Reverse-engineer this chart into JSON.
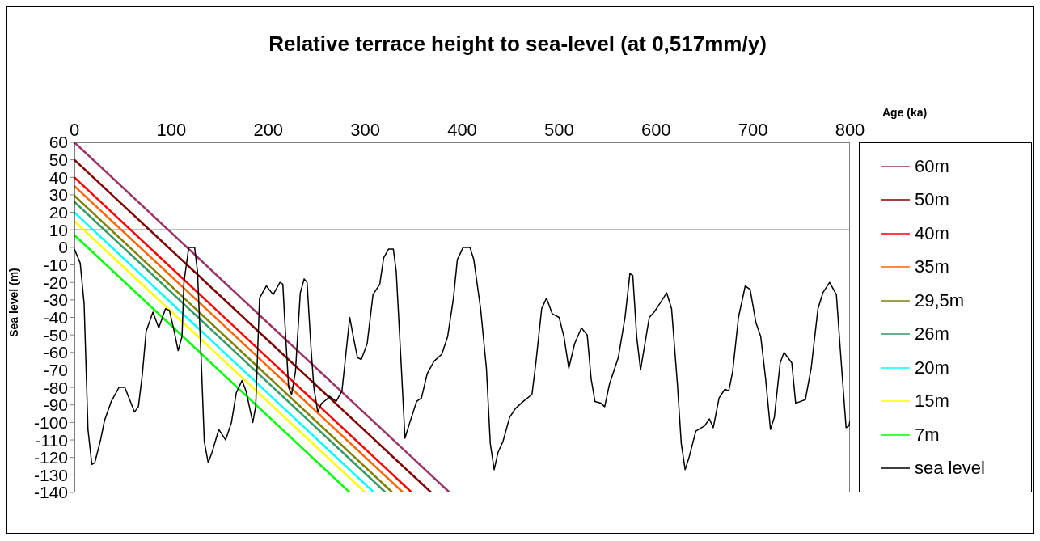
{
  "chart_data": {
    "type": "line",
    "title": "Relative terrace height to sea-level (at 0,517mm/y)",
    "xlabel": "Age (ka)",
    "ylabel": "Sea level (m)",
    "xlim": [
      0,
      800
    ],
    "xticks": [
      0,
      100,
      200,
      300,
      400,
      500,
      600,
      700,
      800
    ],
    "ylim": [
      -140,
      60
    ],
    "yticks": [
      60,
      50,
      40,
      30,
      20,
      10,
      0,
      -10,
      -20,
      -30,
      -40,
      -50,
      -60,
      -70,
      -80,
      -90,
      -100,
      -110,
      -120,
      -130,
      -140
    ],
    "legend": "right",
    "marker": "none",
    "line_style": "solid",
    "ref_lines": [
      {
        "axis": "y",
        "value": 10,
        "color": "#808080"
      }
    ],
    "series": [
      {
        "name": "60m",
        "color": "#993366",
        "x": [
          0,
          387
        ],
        "values": [
          60,
          -140
        ]
      },
      {
        "name": "50m",
        "color": "#800000",
        "x": [
          0,
          368
        ],
        "values": [
          50,
          -140
        ]
      },
      {
        "name": "40m",
        "color": "#ff0000",
        "x": [
          0,
          348
        ],
        "values": [
          40,
          -140
        ]
      },
      {
        "name": "35m",
        "color": "#ff6600",
        "x": [
          0,
          339
        ],
        "values": [
          35,
          -140
        ]
      },
      {
        "name": "29,5m",
        "color": "#808000",
        "x": [
          0,
          328
        ],
        "values": [
          29.5,
          -140
        ]
      },
      {
        "name": "26m",
        "color": "#339966",
        "x": [
          0,
          321
        ],
        "values": [
          26,
          -140
        ]
      },
      {
        "name": "20m",
        "color": "#00ffff",
        "x": [
          0,
          309
        ],
        "values": [
          20,
          -140
        ]
      },
      {
        "name": "15m",
        "color": "#ffff00",
        "x": [
          0,
          300
        ],
        "values": [
          15,
          -140
        ]
      },
      {
        "name": "7m",
        "color": "#00ff00",
        "x": [
          0,
          284
        ],
        "values": [
          7,
          -140
        ]
      },
      {
        "name": "sea level",
        "color": "#000000",
        "x": [
          0,
          6,
          10,
          14,
          18,
          21,
          27,
          31,
          38,
          46,
          52,
          57,
          62,
          66,
          70,
          74,
          81,
          87,
          94,
          98,
          103,
          107,
          111,
          113,
          118,
          124,
          127,
          131,
          134,
          138,
          142,
          149,
          156,
          162,
          167,
          173,
          177,
          184,
          187,
          189,
          191,
          198,
          205,
          212,
          215,
          217,
          221,
          224,
          228,
          233,
          237,
          240,
          244,
          247,
          251,
          255,
          260,
          263,
          270,
          276,
          280,
          284,
          288,
          292,
          296,
          302,
          308,
          315,
          319,
          324,
          329,
          332,
          337,
          341,
          346,
          353,
          358,
          364,
          371,
          379,
          385,
          391,
          395,
          401,
          408,
          412,
          419,
          425,
          429,
          433,
          437,
          442,
          449,
          455,
          463,
          472,
          476,
          482,
          487,
          493,
          500,
          505,
          510,
          516,
          523,
          529,
          533,
          537,
          543,
          547,
          552,
          561,
          568,
          573,
          576,
          580,
          584,
          587,
          593,
          598,
          604,
          611,
          616,
          622,
          626,
          630,
          634,
          641,
          650,
          655,
          659,
          665,
          671,
          675,
          679,
          685,
          692,
          697,
          703,
          708,
          713,
          718,
          722,
          728,
          732,
          740,
          744,
          754,
          760,
          767,
          772,
          779,
          786,
          790,
          796,
          799,
          800
        ],
        "values": [
          -1,
          -9,
          -32,
          -104,
          -124,
          -123,
          -110,
          -99,
          -88,
          -80,
          -80,
          -87,
          -94,
          -91,
          -73,
          -48,
          -37,
          -46,
          -35,
          -36,
          -48,
          -59,
          -51,
          -20,
          0,
          0,
          -14,
          -67,
          -111,
          -123,
          -117,
          -104,
          -110,
          -100,
          -83,
          -76,
          -82,
          -100,
          -91,
          -60,
          -29,
          -22,
          -27,
          -20,
          -21,
          -42,
          -80,
          -84,
          -71,
          -26,
          -18,
          -20,
          -57,
          -80,
          -94,
          -89,
          -87,
          -85,
          -88,
          -82,
          -61,
          -40,
          -52,
          -63,
          -64,
          -55,
          -27,
          -21,
          -6,
          -1,
          -1,
          -14,
          -66,
          -109,
          -100,
          -88,
          -86,
          -72,
          -65,
          -61,
          -51,
          -29,
          -7,
          0,
          0,
          -7,
          -35,
          -69,
          -112,
          -127,
          -117,
          -111,
          -97,
          -92,
          -88,
          -84,
          -66,
          -35,
          -29,
          -38,
          -40,
          -51,
          -69,
          -55,
          -46,
          -50,
          -75,
          -88,
          -89,
          -91,
          -78,
          -63,
          -40,
          -15,
          -16,
          -51,
          -70,
          -60,
          -40,
          -37,
          -32,
          -26,
          -35,
          -78,
          -112,
          -127,
          -120,
          -105,
          -102,
          -98,
          -103,
          -86,
          -81,
          -82,
          -71,
          -40,
          -22,
          -24,
          -43,
          -51,
          -75,
          -104,
          -97,
          -66,
          -60,
          -66,
          -89,
          -87,
          -69,
          -35,
          -26,
          -20,
          -27,
          -58,
          -103,
          -102,
          -99
        ]
      }
    ]
  }
}
